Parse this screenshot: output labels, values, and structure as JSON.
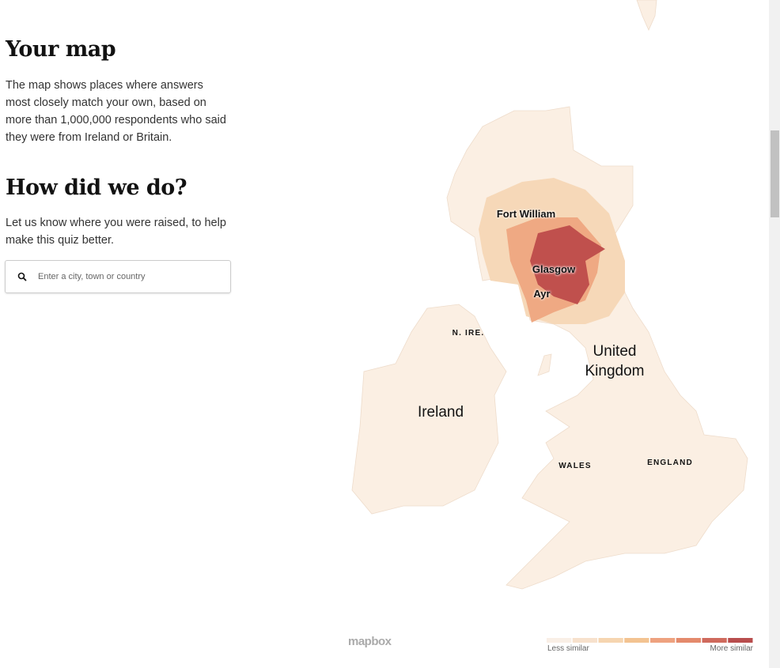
{
  "sidebar": {
    "title": "Your map",
    "description": "The map shows places where answers most closely match your own, based on more than 1,000,000 respondents who said they were from Ireland or Britain.",
    "feedback_title": "How did we do?",
    "feedback_text": "Let us know where you were raised, to help make this quiz better.",
    "search_placeholder": "Enter a city, town or country"
  },
  "map": {
    "labels": [
      "Fort William",
      "Glasgow",
      "Ayr",
      "N. IRE.",
      "United Kingdom",
      "Ireland",
      "WALES",
      "ENGLAND"
    ],
    "attribution": "mapbox",
    "legend": {
      "low": "Less similar",
      "high": "More similar",
      "colors": [
        "#f9efe6",
        "#f7e1cc",
        "#f6d5b0",
        "#f3c391",
        "#eea27f",
        "#e48a6c",
        "#cf6a5d",
        "#b84d4d"
      ]
    }
  }
}
